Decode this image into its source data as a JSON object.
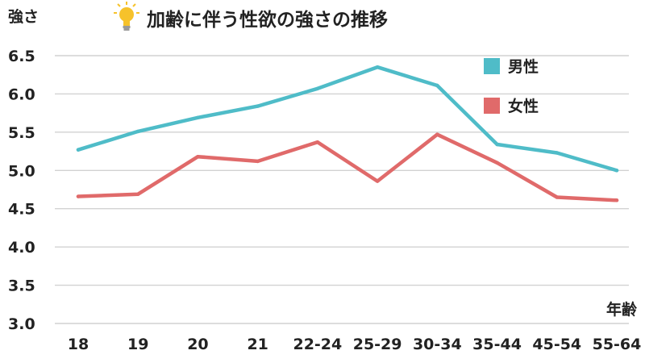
{
  "chart_data": {
    "type": "line",
    "title": "加齢に伴う性欲の強さの推移",
    "title_icon": "lightbulb-icon",
    "ylabel": "強さ",
    "xlabel": "年齢",
    "categories": [
      "18",
      "19",
      "20",
      "21",
      "22-24",
      "25-29",
      "30-34",
      "35-44",
      "45-54",
      "55-64"
    ],
    "ylim": [
      3.0,
      6.5
    ],
    "yticks": [
      "3.0",
      "3.5",
      "4.0",
      "4.5",
      "5.0",
      "5.5",
      "6.0",
      "6.5"
    ],
    "grid": true,
    "legend_position": "top-right",
    "series": [
      {
        "name": "男性",
        "color": "#4fbcc8",
        "values": [
          5.27,
          5.51,
          5.69,
          5.84,
          6.07,
          6.35,
          6.11,
          5.34,
          5.23,
          5.0
        ]
      },
      {
        "name": "女性",
        "color": "#e06a6a",
        "values": [
          4.66,
          4.69,
          5.18,
          5.12,
          5.37,
          4.86,
          5.47,
          5.1,
          4.65,
          4.61
        ]
      }
    ]
  }
}
